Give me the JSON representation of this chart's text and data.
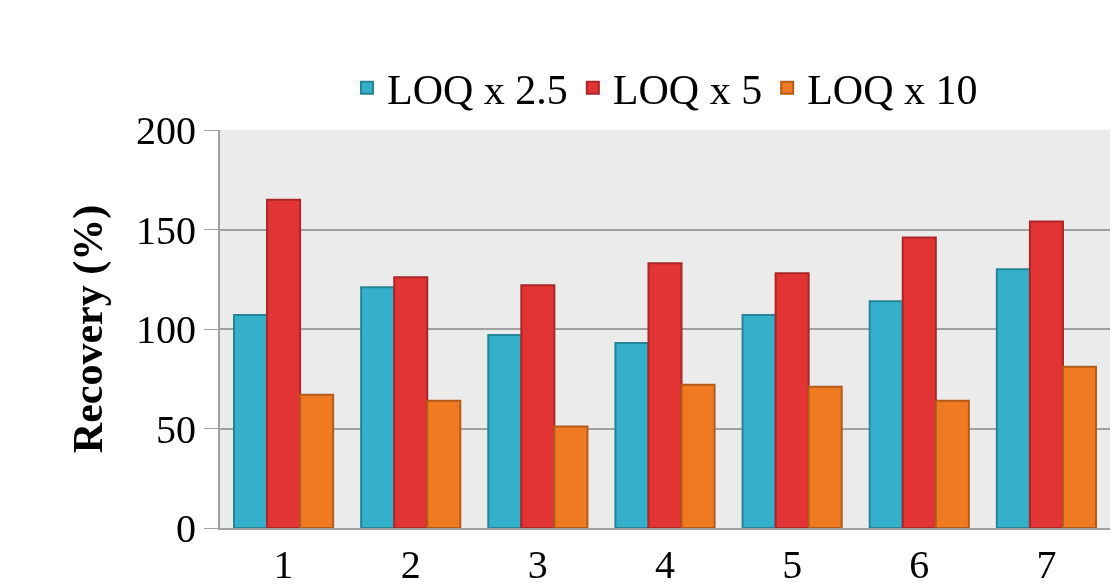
{
  "chart_data": {
    "type": "bar",
    "ylabel": "Recovery (%)",
    "categories": [
      "1",
      "2",
      "3",
      "4",
      "5",
      "6",
      "7"
    ],
    "series": [
      {
        "name": "LOQ x 2.5",
        "color": "#35b0cb",
        "values": [
          107,
          121,
          97,
          93,
          107,
          114,
          130
        ]
      },
      {
        "name": "LOQ x 5",
        "color": "#e23435",
        "values": [
          165,
          126,
          122,
          133,
          128,
          146,
          154
        ]
      },
      {
        "name": "LOQ x 10",
        "color": "#f07a22",
        "values": [
          67,
          64,
          51,
          72,
          71,
          64,
          81
        ]
      }
    ],
    "ylim": [
      0,
      200
    ],
    "yticks": [
      0,
      50,
      100,
      150,
      200
    ],
    "grid": "y",
    "legend": "top"
  }
}
